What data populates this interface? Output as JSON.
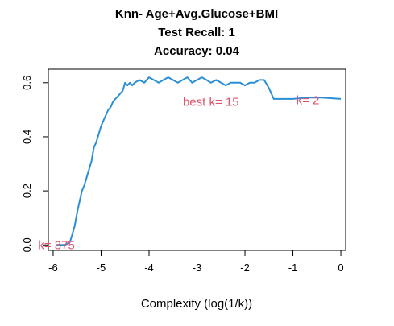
{
  "chart_data": {
    "type": "line",
    "title": [
      "Knn- Age+Avg.Glucose+BMI",
      "Test Recall:  1",
      "Accuracy:  0.04"
    ],
    "xlabel": "Complexity (log(1/k))",
    "ylabel": "",
    "xlim": [
      -6.1,
      0.1
    ],
    "ylim": [
      -0.02,
      0.65
    ],
    "xticks": [
      "-6",
      "-5",
      "-4",
      "-3",
      "-2",
      "-1",
      "0"
    ],
    "xtick_values": [
      -6,
      -5,
      -4,
      -3,
      -2,
      -1,
      0
    ],
    "yticks": [
      "0.0",
      "0.2",
      "0.4",
      "0.6"
    ],
    "ytick_values": [
      0.0,
      0.2,
      0.4,
      0.6
    ],
    "grid": false,
    "line_color": "#2b8fd6",
    "annotation_color": "#df536b",
    "annotations": [
      {
        "text": "k= 375",
        "x": -5.93,
        "y": 0.0
      },
      {
        "text": "best k= 15",
        "x": -2.71,
        "y": 0.53
      },
      {
        "text": "k= 2",
        "x": -0.69,
        "y": 0.535
      }
    ],
    "series": [
      {
        "x": [
          -5.93,
          -5.75,
          -5.65,
          -5.6,
          -5.55,
          -5.5,
          -5.45,
          -5.4,
          -5.35,
          -5.3,
          -5.25,
          -5.2,
          -5.15,
          -5.1,
          -5.05,
          -5.0,
          -4.95,
          -4.9,
          -4.85,
          -4.8,
          -4.75,
          -4.7,
          -4.65,
          -4.6,
          -4.55,
          -4.5,
          -4.45,
          -4.4,
          -4.35,
          -4.3,
          -4.2,
          -4.1,
          -4.0,
          -3.9,
          -3.8,
          -3.7,
          -3.6,
          -3.5,
          -3.4,
          -3.3,
          -3.2,
          -3.1,
          -3.0,
          -2.9,
          -2.8,
          -2.71,
          -2.6,
          -2.5,
          -2.4,
          -2.3,
          -2.2,
          -2.1,
          -2.0,
          -1.9,
          -1.8,
          -1.7,
          -1.6,
          -1.5,
          -1.4,
          -1.2,
          -1.0,
          -0.69,
          -0.4,
          0.0
        ],
        "y": [
          0.0,
          0.0,
          0.01,
          0.04,
          0.07,
          0.12,
          0.16,
          0.2,
          0.22,
          0.25,
          0.28,
          0.31,
          0.36,
          0.38,
          0.41,
          0.44,
          0.46,
          0.48,
          0.5,
          0.51,
          0.53,
          0.54,
          0.55,
          0.56,
          0.57,
          0.6,
          0.59,
          0.6,
          0.59,
          0.6,
          0.61,
          0.6,
          0.62,
          0.61,
          0.6,
          0.61,
          0.62,
          0.61,
          0.6,
          0.61,
          0.62,
          0.6,
          0.61,
          0.62,
          0.61,
          0.6,
          0.61,
          0.6,
          0.59,
          0.6,
          0.6,
          0.6,
          0.59,
          0.6,
          0.6,
          0.61,
          0.61,
          0.58,
          0.54,
          0.54,
          0.54,
          0.545,
          0.545,
          0.54
        ]
      }
    ]
  }
}
